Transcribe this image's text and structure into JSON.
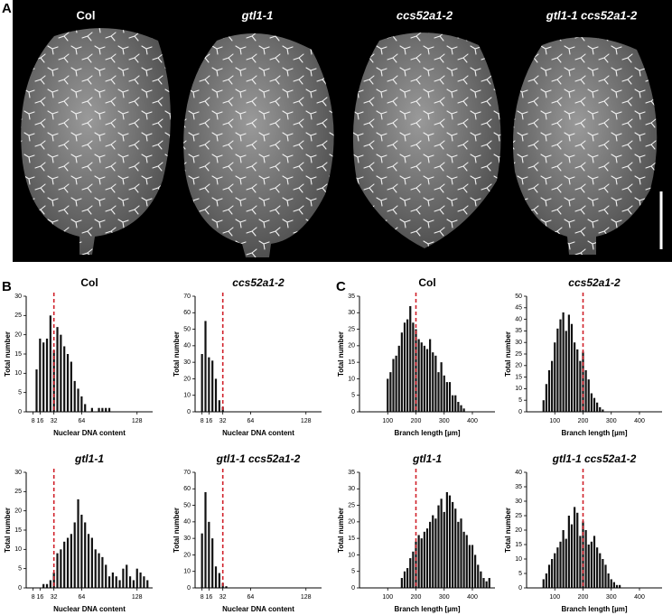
{
  "panel_a": {
    "label": "A",
    "genotypes": [
      "Col",
      "gtl1-1",
      "ccs52a1-2",
      "gtl1-1 ccs52a1-2"
    ]
  },
  "panel_b_label": "B",
  "panel_c_label": "C",
  "chart_data": [
    {
      "type": "bar",
      "title": "Col",
      "title_italic": false,
      "x_label": "Nuclear DNA content",
      "y_label": "Total number",
      "x": [
        12,
        16,
        20,
        24,
        28,
        32,
        36,
        40,
        44,
        48,
        52,
        56,
        60,
        64,
        68,
        76,
        84,
        88,
        92,
        96
      ],
      "values": [
        11,
        19,
        18,
        19,
        25,
        16,
        22,
        20,
        17,
        15,
        13,
        8,
        6,
        4,
        2,
        1,
        1,
        1,
        1,
        1
      ],
      "xlim": [
        0,
        146
      ],
      "xticks": [
        8,
        16,
        32,
        64,
        128
      ],
      "ylim": [
        0,
        30
      ],
      "yticks": [
        0,
        5,
        10,
        15,
        20,
        25,
        30
      ],
      "reference_line": 32,
      "color": "#111111",
      "reference_color": "#d0202a"
    },
    {
      "type": "bar",
      "title": "ccs52a1-2",
      "title_italic": true,
      "x_label": "Nuclear DNA content",
      "y_label": "Total number",
      "x": [
        8,
        12,
        16,
        20,
        24,
        28,
        32
      ],
      "values": [
        35,
        55,
        33,
        31,
        20,
        7,
        3
      ],
      "xlim": [
        0,
        146
      ],
      "xticks": [
        8,
        16,
        32,
        64,
        128
      ],
      "ylim": [
        0,
        70
      ],
      "yticks": [
        0,
        10,
        20,
        30,
        40,
        50,
        60,
        70
      ],
      "reference_line": 32,
      "color": "#111111",
      "reference_color": "#d0202a"
    },
    {
      "type": "bar",
      "title": "gtl1-1",
      "title_italic": true,
      "x_label": "Nuclear DNA content",
      "y_label": "Total number",
      "x": [
        20,
        24,
        28,
        32,
        36,
        40,
        44,
        48,
        52,
        56,
        60,
        64,
        68,
        72,
        76,
        80,
        84,
        88,
        92,
        96,
        100,
        104,
        108,
        112,
        116,
        120,
        124,
        128,
        132,
        136,
        140
      ],
      "values": [
        1,
        1,
        2,
        4,
        9,
        10,
        12,
        13,
        14,
        17,
        23,
        19,
        17,
        14,
        13,
        10,
        9,
        8,
        6,
        3,
        4,
        3,
        2,
        5,
        6,
        3,
        2,
        5,
        4,
        3,
        2
      ],
      "xlim": [
        0,
        146
      ],
      "xticks": [
        8,
        16,
        32,
        64,
        128
      ],
      "ylim": [
        0,
        30
      ],
      "yticks": [
        0,
        5,
        10,
        15,
        20,
        25,
        30
      ],
      "reference_line": 32,
      "color": "#111111",
      "reference_color": "#d0202a"
    },
    {
      "type": "bar",
      "title": "gtl1-1 ccs52a1-2",
      "title_italic": true,
      "x_label": "Nuclear DNA content",
      "y_label": "Total number",
      "x": [
        8,
        12,
        16,
        20,
        24,
        28,
        32,
        36
      ],
      "values": [
        33,
        58,
        40,
        30,
        13,
        9,
        3,
        1
      ],
      "xlim": [
        0,
        146
      ],
      "xticks": [
        8,
        16,
        32,
        64,
        128
      ],
      "ylim": [
        0,
        70
      ],
      "yticks": [
        0,
        10,
        20,
        30,
        40,
        50,
        60,
        70
      ],
      "reference_line": 32,
      "color": "#111111",
      "reference_color": "#d0202a"
    },
    {
      "type": "bar",
      "title": "Col",
      "title_italic": false,
      "x_label": "Branch length [µm]",
      "y_label": "Total number",
      "x": [
        100,
        110,
        120,
        130,
        140,
        150,
        160,
        170,
        180,
        190,
        200,
        210,
        220,
        230,
        240,
        250,
        260,
        270,
        280,
        290,
        300,
        310,
        320,
        330,
        340,
        350,
        360,
        370
      ],
      "values": [
        10,
        12,
        16,
        17,
        20,
        24,
        27,
        28,
        32,
        27,
        25,
        22,
        21,
        20,
        19,
        22,
        18,
        17,
        12,
        15,
        11,
        9,
        9,
        5,
        5,
        3,
        2,
        1
      ],
      "xlim": [
        0,
        480
      ],
      "xticks": [
        100,
        200,
        300,
        400
      ],
      "ylim": [
        0,
        35
      ],
      "yticks": [
        0,
        5,
        10,
        15,
        20,
        25,
        30,
        35
      ],
      "reference_line": 200,
      "color": "#111111",
      "reference_color": "#d0202a"
    },
    {
      "type": "bar",
      "title": "ccs52a1-2",
      "title_italic": true,
      "x_label": "Branch length [µm]",
      "y_label": "Total number",
      "x": [
        60,
        70,
        80,
        90,
        100,
        110,
        120,
        130,
        140,
        150,
        160,
        170,
        180,
        190,
        200,
        210,
        220,
        230,
        240,
        250,
        260,
        270
      ],
      "values": [
        5,
        12,
        18,
        22,
        30,
        36,
        40,
        43,
        35,
        42,
        38,
        30,
        27,
        22,
        26,
        18,
        14,
        8,
        6,
        4,
        2,
        1
      ],
      "xlim": [
        0,
        480
      ],
      "xticks": [
        100,
        200,
        300,
        400
      ],
      "ylim": [
        0,
        50
      ],
      "yticks": [
        0,
        5,
        10,
        15,
        20,
        25,
        30,
        35,
        40,
        45,
        50
      ],
      "reference_line": 200,
      "color": "#111111",
      "reference_color": "#d0202a"
    },
    {
      "type": "bar",
      "title": "gtl1-1",
      "title_italic": true,
      "x_label": "Branch length [µm]",
      "y_label": "Total number",
      "x": [
        150,
        160,
        170,
        180,
        190,
        200,
        210,
        220,
        230,
        240,
        250,
        260,
        270,
        280,
        290,
        300,
        310,
        320,
        330,
        340,
        350,
        360,
        370,
        380,
        390,
        400,
        410,
        420,
        430,
        440,
        450,
        460
      ],
      "values": [
        3,
        5,
        6,
        9,
        11,
        14,
        16,
        15,
        17,
        18,
        20,
        22,
        21,
        25,
        27,
        23,
        29,
        28,
        26,
        24,
        20,
        21,
        17,
        16,
        13,
        13,
        10,
        7,
        5,
        3,
        2,
        3
      ],
      "xlim": [
        0,
        480
      ],
      "xticks": [
        100,
        200,
        300,
        400
      ],
      "ylim": [
        0,
        35
      ],
      "yticks": [
        0,
        5,
        10,
        15,
        20,
        25,
        30,
        35
      ],
      "reference_line": 200,
      "color": "#111111",
      "reference_color": "#d0202a"
    },
    {
      "type": "bar",
      "title": "gtl1-1 ccs52a1-2",
      "title_italic": true,
      "x_label": "Branch length [µm]",
      "y_label": "Total number",
      "x": [
        60,
        70,
        80,
        90,
        100,
        110,
        120,
        130,
        140,
        150,
        160,
        170,
        180,
        190,
        200,
        210,
        220,
        230,
        240,
        250,
        260,
        270,
        280,
        290,
        300,
        310,
        320,
        330
      ],
      "values": [
        3,
        5,
        8,
        10,
        12,
        14,
        16,
        20,
        17,
        25,
        22,
        28,
        26,
        18,
        23,
        20,
        15,
        16,
        18,
        14,
        12,
        10,
        8,
        5,
        3,
        2,
        1,
        1
      ],
      "xlim": [
        0,
        480
      ],
      "xticks": [
        100,
        200,
        300,
        400
      ],
      "ylim": [
        0,
        40
      ],
      "yticks": [
        0,
        5,
        10,
        15,
        20,
        25,
        30,
        35,
        40
      ],
      "reference_line": 200,
      "color": "#111111",
      "reference_color": "#d0202a"
    }
  ]
}
